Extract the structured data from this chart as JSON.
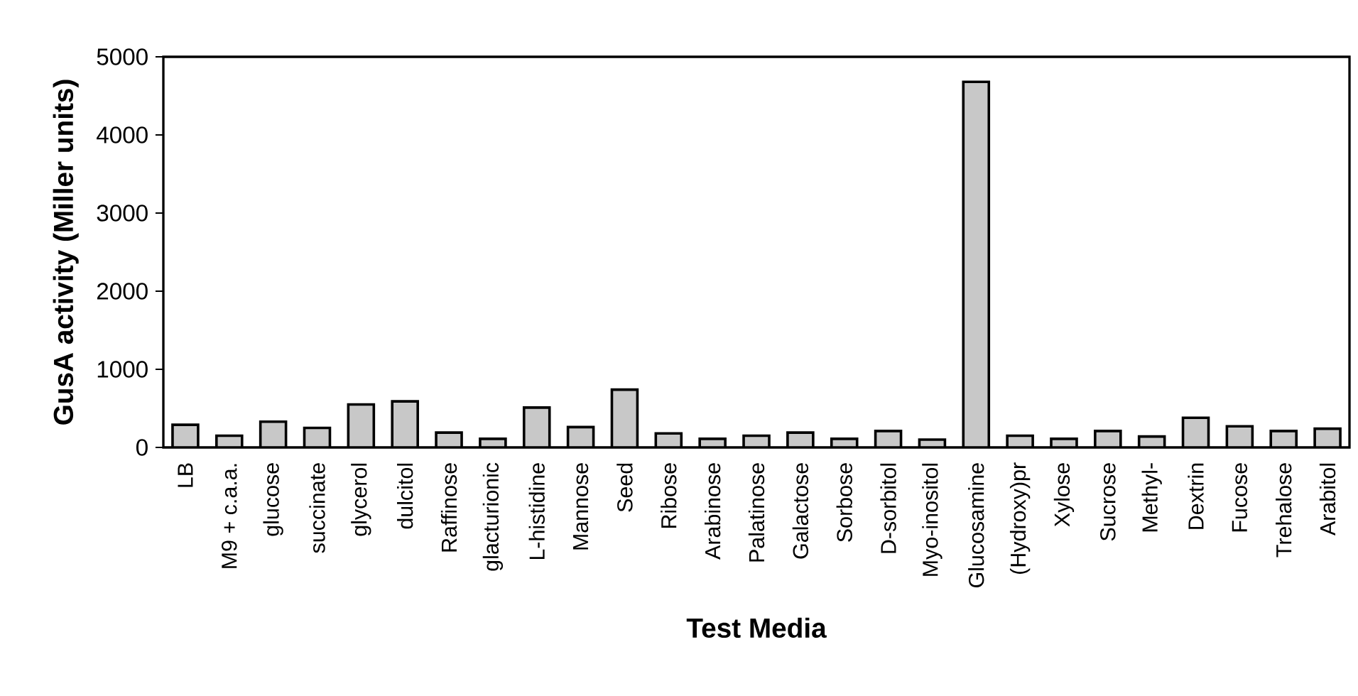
{
  "chart_data": {
    "type": "bar",
    "xlabel": "Test Media",
    "ylabel": "GusA activity (Miller units)",
    "categories": [
      "LB",
      "M9 + c.a.a.",
      "glucose",
      "succinate",
      "glycerol",
      "dulcitol",
      "Raffinose",
      "glacturionic",
      "L-histidine",
      "Mannose",
      "Seed",
      "Ribose",
      "Arabinose",
      "Palatinose",
      "Galactose",
      "Sorbose",
      "D-sorbitol",
      "Myo-inositol",
      "Glucosamine",
      "(Hydroxy)pr",
      "Xylose",
      "Sucrose",
      "Methyl-",
      "Dextrin",
      "Fucose",
      "Trehalose",
      "Arabitol"
    ],
    "values": [
      290,
      150,
      330,
      250,
      550,
      590,
      190,
      110,
      510,
      260,
      740,
      180,
      110,
      150,
      190,
      110,
      210,
      100,
      4680,
      150,
      110,
      210,
      140,
      380,
      270,
      210,
      240
    ],
    "color": "#c8c8c8",
    "ylim": [
      0,
      5000
    ],
    "yticks": [
      0,
      1000,
      2000,
      3000,
      4000,
      5000
    ]
  }
}
